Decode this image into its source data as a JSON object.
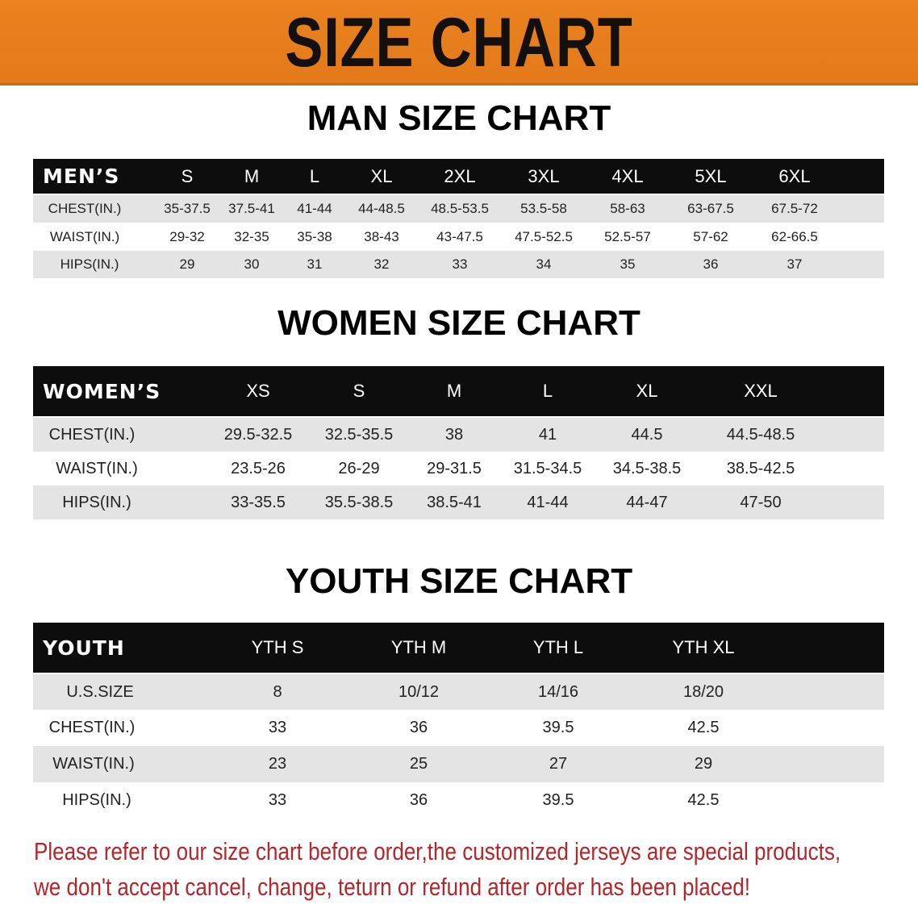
{
  "banner": {
    "title": "SIZE CHART",
    "color": "#e8801e"
  },
  "men": {
    "title": "MAN SIZE CHART",
    "header": [
      "MEN’S",
      "S",
      "M",
      "L",
      "XL",
      "2XL",
      "3XL",
      "4XL",
      "5XL",
      "6XL"
    ],
    "rows": [
      [
        "CHEST(IN.)",
        "35-37.5",
        "37.5-41",
        "41-44",
        "44-48.5",
        "48.5-53.5",
        "53.5-58",
        "58-63",
        "63-67.5",
        "67.5-72"
      ],
      [
        "WAIST(IN.)",
        "29-32",
        "32-35",
        "35-38",
        "38-43",
        "43-47.5",
        "47.5-52.5",
        "52.5-57",
        "57-62",
        "62-66.5"
      ],
      [
        "HIPS(IN.)",
        "29",
        "30",
        "31",
        "32",
        "33",
        "34",
        "35",
        "36",
        "37"
      ]
    ]
  },
  "women": {
    "title": "WOMEN SIZE CHART",
    "header": [
      "WOMEN’S",
      "XS",
      "S",
      "M",
      "L",
      "XL",
      "XXL"
    ],
    "rows": [
      [
        "CHEST(IN.)",
        "29.5-32.5",
        "32.5-35.5",
        "38",
        "41",
        "44.5",
        "44.5-48.5"
      ],
      [
        "WAIST(IN.)",
        "23.5-26",
        "26-29",
        "29-31.5",
        "31.5-34.5",
        "34.5-38.5",
        "38.5-42.5"
      ],
      [
        "HIPS(IN.)",
        "33-35.5",
        "35.5-38.5",
        "38.5-41",
        "41-44",
        "44-47",
        "47-50"
      ]
    ]
  },
  "youth": {
    "title": "YOUTH SIZE CHART",
    "header": [
      "YOUTH",
      "YTH S",
      "YTH M",
      "YTH L",
      "YTH XL"
    ],
    "rows": [
      [
        "U.S.SIZE",
        "8",
        "10/12",
        "14/16",
        "18/20"
      ],
      [
        "CHEST(IN.)",
        "33",
        "36",
        "39.5",
        "42.5"
      ],
      [
        "WAIST(IN.)",
        "23",
        "25",
        "27",
        "29"
      ],
      [
        "HIPS(IN.)",
        "33",
        "36",
        "39.5",
        "42.5"
      ]
    ]
  },
  "footer": {
    "line1": "Please refer to our size chart before order,the customized jerseys are special products,",
    "line2": "we don't accept cancel, change, teturn or refund after order has been placed!",
    "color": "#b3262b"
  }
}
